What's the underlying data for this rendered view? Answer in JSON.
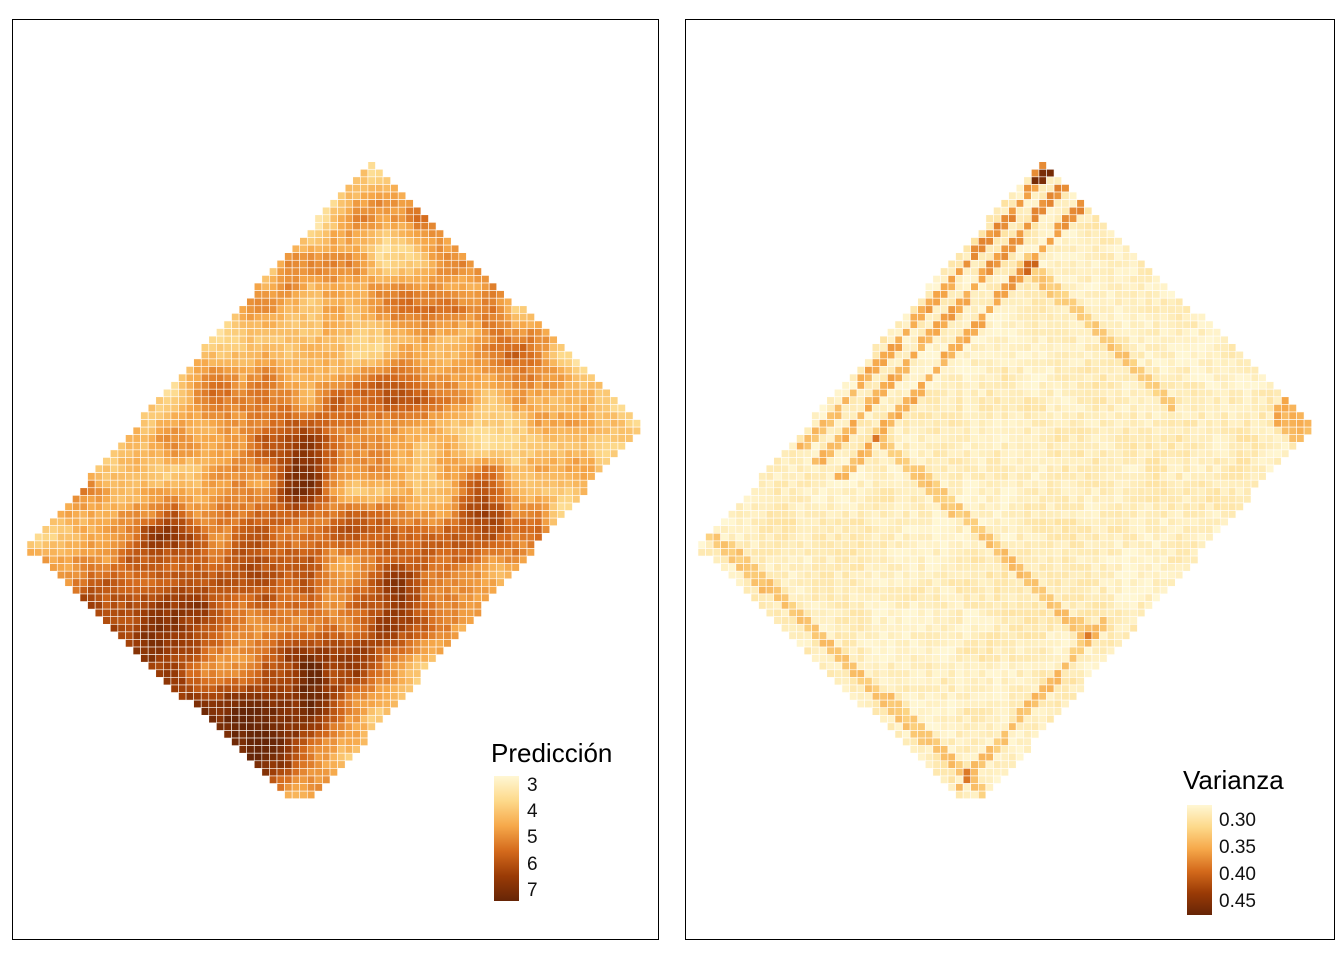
{
  "colors": {
    "ramp": [
      "#fff7d4",
      "#fdd98a",
      "#f6a84a",
      "#d46a1c",
      "#9a3b06",
      "#662506"
    ],
    "border": "#000000",
    "background": "#ffffff"
  },
  "panels": [
    {
      "id": "prediccion",
      "legend": {
        "title": "Predicción",
        "ticks": [
          "3",
          "4",
          "5",
          "6",
          "7"
        ],
        "range": [
          2.7,
          7.2
        ]
      }
    },
    {
      "id": "varianza",
      "legend": {
        "title": "Varianza",
        "ticks": [
          "0.30",
          "0.35",
          "0.40",
          "0.45"
        ],
        "range": [
          0.285,
          0.47
        ]
      }
    }
  ]
}
